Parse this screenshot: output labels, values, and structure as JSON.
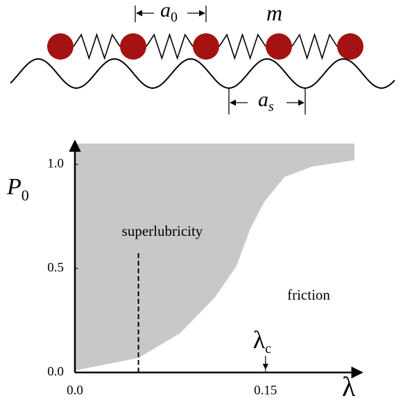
{
  "schematic": {
    "spacing_label": {
      "symbol": "a",
      "subscript": "0"
    },
    "mass_label": "m",
    "substrate_label": {
      "symbol": "a",
      "subscript": "s"
    }
  },
  "chart_data": {
    "type": "area",
    "y_label": {
      "symbol": "P",
      "subscript": "0"
    },
    "x_label": "λ",
    "x": [
      0,
      0.05,
      0.083,
      0.11,
      0.127,
      0.138,
      0.149,
      0.165,
      0.187,
      0.22
    ],
    "values": [
      0.01,
      0.07,
      0.19,
      0.36,
      0.51,
      0.69,
      0.82,
      0.94,
      0.99,
      1.02
    ],
    "color": "#c8c8c8",
    "xlim": [
      0,
      0.226
    ],
    "ylim": [
      0,
      1.1
    ],
    "xticks": [
      {
        "value": 0,
        "label": "0.0"
      },
      0.15
    ],
    "yticks": [
      {
        "value": 0,
        "label": "0.0"
      },
      0.5,
      {
        "value": 1,
        "label": "1.0"
      }
    ],
    "annotations": [
      "superlubricity",
      "friction"
    ],
    "dashed_line": {
      "x": 0.05,
      "y": [
        0,
        0.58
      ]
    },
    "critical": {
      "symbol": "λ",
      "subscript": "c",
      "x": 0.15
    }
  }
}
